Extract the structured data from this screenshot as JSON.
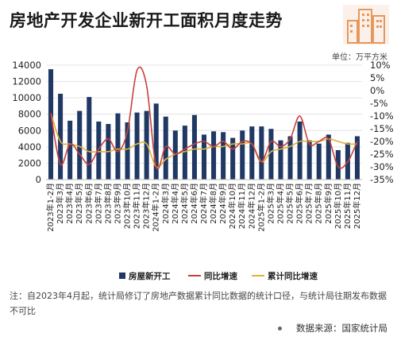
{
  "header": {
    "title": "房地产开发企业新开工面积月度走势",
    "unit": "单位：万平方米"
  },
  "footer": {
    "note": "注：自2023年4月起，统计局修订了房地产数据累计同比数据的统计口径，与统计局往期发布数据不可比",
    "source": "数据来源：国家统计局"
  },
  "colors": {
    "bar": "#1f3864",
    "yoy": "#c9403a",
    "cumulative": "#e0b23c",
    "grid": "#e4e4e4"
  },
  "icons": {
    "logo": "buildings-icon"
  },
  "chart_data": {
    "type": "bar",
    "categories": [
      "2023年1-2月",
      "2023年3月",
      "2023年4月",
      "2023年5月",
      "2023年6月",
      "2023年7月",
      "2023年8月",
      "2023年9月",
      "2023年10月",
      "2023年11月",
      "2023年12月",
      "2024年1-2月",
      "2024年3月",
      "2024年4月",
      "2024年5月",
      "2024年6月",
      "2024年7月",
      "2024年8月",
      "2024年9月",
      "2024年10月",
      "2024年11月",
      "2024年12月",
      "2025年1-2月",
      "2025年3月",
      "2025年4月",
      "2025年5月",
      "2025年6月",
      "2025年7月",
      "2025年8月",
      "2025年9月",
      "2025年10月",
      "2025年11月",
      "2025年12月"
    ],
    "series": [
      {
        "name": "房屋新开工",
        "type": "bar",
        "axis": "left",
        "values": [
          13500,
          10500,
          7200,
          8400,
          10100,
          7100,
          6800,
          8100,
          7000,
          8200,
          8400,
          9300,
          7700,
          6000,
          6600,
          7900,
          5500,
          5900,
          5800,
          5100,
          6000,
          6500,
          6500,
          6200,
          4800,
          5300,
          7100,
          4800,
          4400,
          5500,
          3600,
          4500,
          5300
        ]
      },
      {
        "name": "同比增速",
        "type": "line",
        "axis": "right",
        "values": [
          -9,
          -29,
          -21,
          -25,
          -29,
          -23,
          -19,
          -24,
          -16,
          8,
          2,
          -30,
          -22,
          -25,
          -23,
          -21,
          -20,
          -22,
          -20,
          -23,
          -20,
          -21,
          -28,
          -20,
          -22,
          -19,
          -10,
          -21,
          -20,
          -19,
          -30,
          -28,
          -20
        ]
      },
      {
        "name": "累计同比增速",
        "type": "line",
        "axis": "right",
        "values": [
          -9,
          -20,
          -21,
          -22,
          -24,
          -24,
          -24,
          -23,
          -23,
          -21,
          -21,
          -30,
          -27,
          -25,
          -24,
          -23,
          -23,
          -22,
          -22,
          -21,
          -21,
          -21,
          -28,
          -24,
          -23,
          -22,
          -20,
          -20,
          -20,
          -19,
          -20,
          -21,
          -21
        ]
      }
    ],
    "ylim_left": [
      0,
      14000
    ],
    "yticks_left": [
      0,
      2000,
      4000,
      6000,
      8000,
      10000,
      12000,
      14000
    ],
    "ylim_right": [
      -35,
      10
    ],
    "yticks_right": [
      "10%",
      "5%",
      "0%",
      "-5%",
      "-10%",
      "-15%",
      "-20%",
      "-25%",
      "-30%",
      "-35%"
    ],
    "grid": true,
    "legend": "bottom"
  }
}
